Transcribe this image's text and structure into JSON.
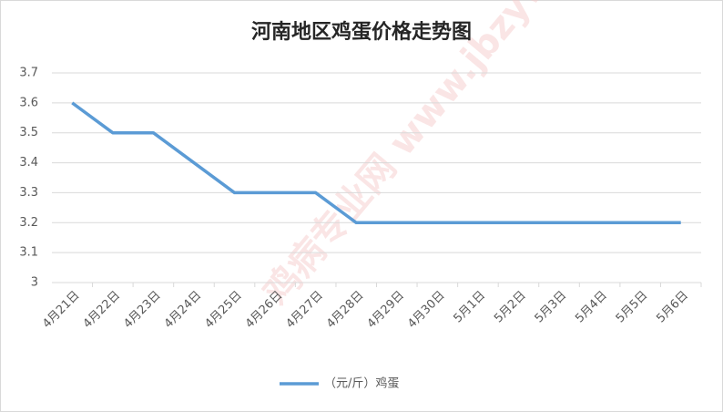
{
  "chart_data": {
    "type": "line",
    "title": "河南地区鸡蛋价格走势图",
    "watermark": "鸡病专业网 www.jbzyw.com",
    "categories": [
      "4月21日",
      "4月22日",
      "4月23日",
      "4月24日",
      "4月25日",
      "4月26日",
      "4月27日",
      "4月28日",
      "4月29日",
      "4月30日",
      "5月1日",
      "5月2日",
      "5月3日",
      "5月4日",
      "5月5日",
      "5月6日"
    ],
    "series": [
      {
        "name": "（元/斤）鸡蛋",
        "color": "#5b9bd5",
        "values": [
          3.6,
          3.5,
          3.5,
          3.4,
          3.3,
          3.3,
          3.3,
          3.2,
          3.2,
          3.2,
          3.2,
          3.2,
          3.2,
          3.2,
          3.2,
          3.2
        ]
      }
    ],
    "ylim": [
      3,
      3.7
    ],
    "yticks": [
      3,
      3.1,
      3.2,
      3.3,
      3.4,
      3.5,
      3.6,
      3.7
    ],
    "grid": true,
    "legend": "bottom"
  }
}
